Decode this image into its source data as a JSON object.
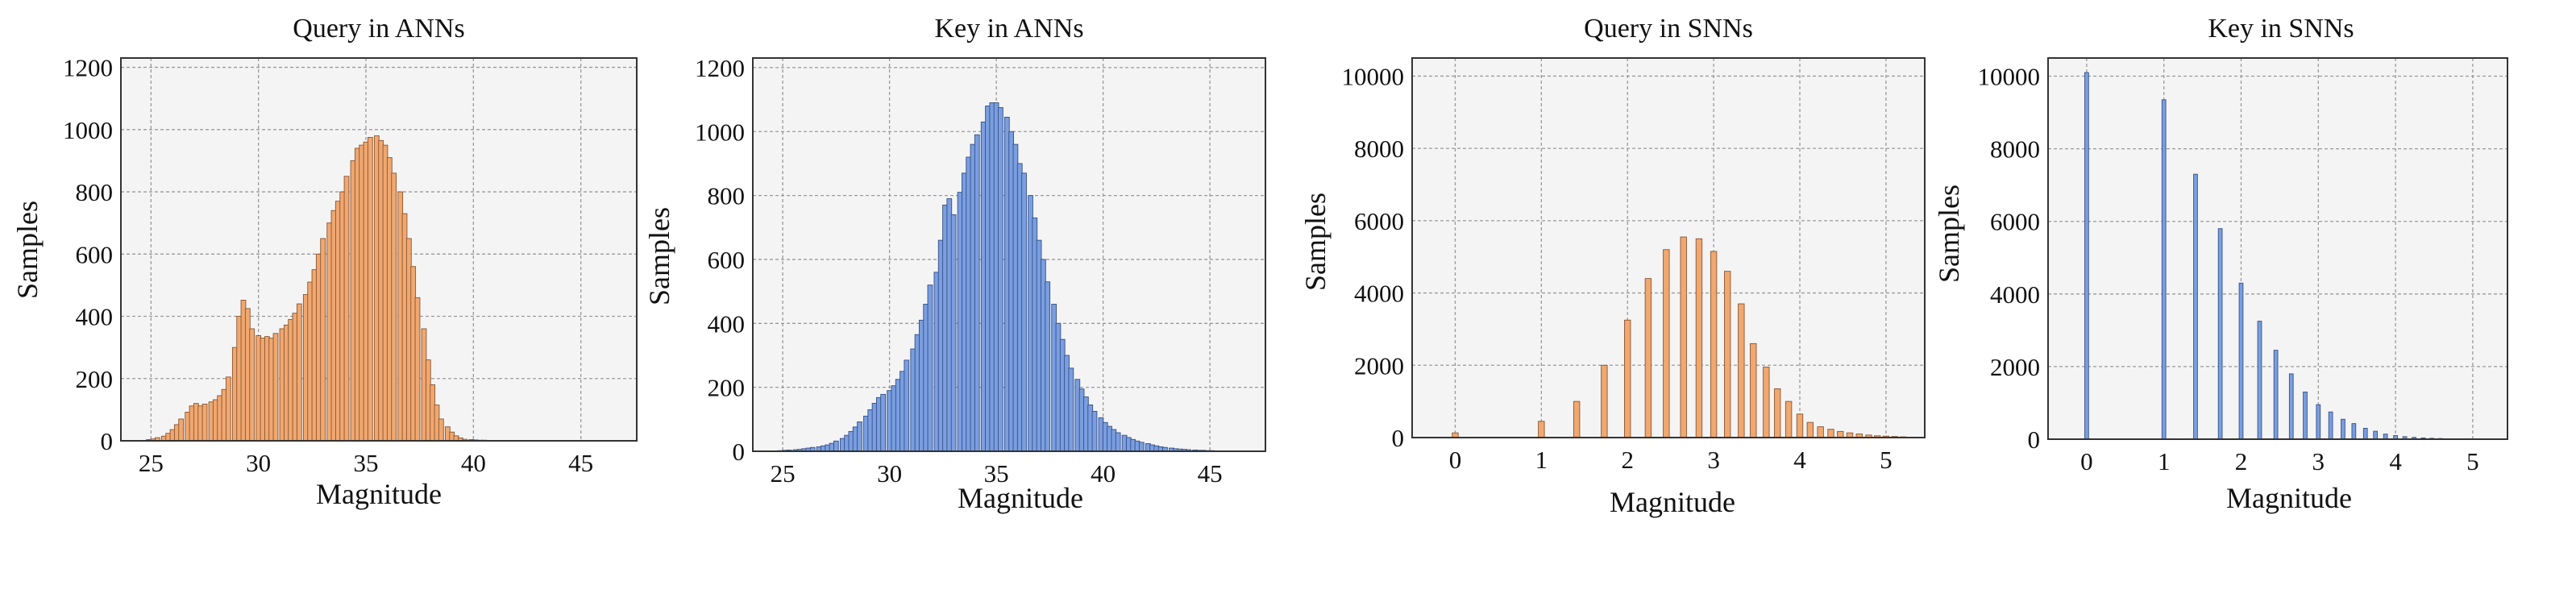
{
  "chart_data": [
    {
      "type": "bar",
      "title": "Query in ANNs",
      "xlabel": "Magnitude",
      "ylabel": "Samples",
      "xlim": [
        23.6,
        47.6
      ],
      "ylim": [
        0,
        1230
      ],
      "xticks": [
        25,
        30,
        35,
        40,
        45
      ],
      "yticks": [
        0,
        200,
        400,
        600,
        800,
        1000,
        1200
      ],
      "grid": true,
      "color": "#F0A870",
      "edge_color": "#8A5530",
      "bin_width": 0.22,
      "x": [
        24.9,
        25.1,
        25.3,
        25.6,
        25.8,
        26.0,
        26.2,
        26.4,
        26.7,
        26.9,
        27.1,
        27.3,
        27.5,
        27.8,
        28.0,
        28.2,
        28.4,
        28.6,
        28.9,
        29.1,
        29.3,
        29.5,
        29.7,
        30.0,
        30.2,
        30.4,
        30.6,
        30.8,
        31.1,
        31.3,
        31.5,
        31.7,
        31.9,
        32.2,
        32.4,
        32.6,
        32.8,
        33.0,
        33.3,
        33.5,
        33.7,
        33.9,
        34.1,
        34.4,
        34.6,
        34.8,
        35.0,
        35.2,
        35.5,
        35.7,
        35.9,
        36.1,
        36.3,
        36.6,
        36.8,
        37.0,
        37.2,
        37.4,
        37.7,
        37.9,
        38.1,
        38.3,
        38.5,
        38.8,
        39.0,
        39.2,
        39.4,
        39.6,
        39.9,
        40.1,
        40.3,
        40.5,
        40.7,
        41.0,
        41.2,
        41.4,
        41.6,
        41.8,
        42.1,
        42.3,
        42.5,
        42.7,
        42.9,
        43.2,
        43.4,
        43.6,
        43.8,
        44.0,
        44.3,
        44.5,
        44.7,
        44.9,
        45.1,
        45.4,
        45.6,
        45.8,
        46.0,
        46.2,
        46.5,
        46.7
      ],
      "values": [
        4,
        6,
        10,
        15,
        24,
        36,
        52,
        70,
        92,
        112,
        120,
        112,
        118,
        125,
        132,
        145,
        165,
        205,
        300,
        400,
        452,
        425,
        360,
        338,
        330,
        335,
        330,
        345,
        360,
        372,
        390,
        410,
        440,
        470,
        510,
        550,
        600,
        650,
        700,
        740,
        770,
        800,
        850,
        900,
        940,
        950,
        960,
        975,
        980,
        965,
        950,
        910,
        860,
        800,
        730,
        650,
        560,
        460,
        360,
        260,
        180,
        115,
        70,
        45,
        28,
        16,
        9,
        5,
        4,
        3,
        2,
        2,
        1,
        1,
        1,
        1,
        1,
        0,
        0,
        1,
        0,
        0,
        1,
        0,
        0,
        0,
        0,
        0,
        1,
        0,
        0,
        0,
        0,
        0,
        0,
        0,
        0,
        0,
        0,
        0
      ]
    },
    {
      "type": "bar",
      "title": "Key in ANNs",
      "xlabel": "Magnitude",
      "ylabel": "Samples",
      "xlim": [
        23.6,
        47.6
      ],
      "ylim": [
        0,
        1230
      ],
      "xticks": [
        25,
        30,
        35,
        40,
        45
      ],
      "yticks": [
        0,
        200,
        400,
        600,
        800,
        1000,
        1200
      ],
      "grid": true,
      "color": "#7A9EDF",
      "edge_color": "#34508A",
      "bin_width": 0.22,
      "x": [
        24.9,
        25.1,
        25.3,
        25.6,
        25.8,
        26.0,
        26.2,
        26.4,
        26.7,
        26.9,
        27.1,
        27.3,
        27.5,
        27.8,
        28.0,
        28.2,
        28.4,
        28.6,
        28.9,
        29.1,
        29.3,
        29.5,
        29.7,
        30.0,
        30.2,
        30.4,
        30.6,
        30.8,
        31.1,
        31.3,
        31.5,
        31.7,
        31.9,
        32.2,
        32.4,
        32.6,
        32.8,
        33.0,
        33.3,
        33.5,
        33.7,
        33.9,
        34.1,
        34.4,
        34.6,
        34.8,
        35.0,
        35.2,
        35.5,
        35.7,
        35.9,
        36.1,
        36.3,
        36.6,
        36.8,
        37.0,
        37.2,
        37.4,
        37.7,
        37.9,
        38.1,
        38.3,
        38.5,
        38.8,
        39.0,
        39.2,
        39.4,
        39.6,
        39.9,
        40.1,
        40.3,
        40.5,
        40.7,
        41.0,
        41.2,
        41.4,
        41.6,
        41.8,
        42.1,
        42.3,
        42.5,
        42.7,
        42.9,
        43.2,
        43.4,
        43.6,
        43.8,
        44.0,
        44.3,
        44.5,
        44.7,
        44.9,
        45.1,
        45.4,
        45.6,
        45.8,
        46.0,
        46.2,
        46.5,
        46.7
      ],
      "values": [
        2,
        3,
        4,
        5,
        6,
        8,
        10,
        12,
        14,
        17,
        20,
        25,
        32,
        40,
        50,
        62,
        76,
        92,
        110,
        130,
        150,
        168,
        178,
        190,
        205,
        225,
        250,
        285,
        320,
        365,
        410,
        460,
        520,
        560,
        660,
        770,
        790,
        740,
        810,
        870,
        920,
        960,
        990,
        1030,
        1080,
        1090,
        1090,
        1075,
        1045,
        1000,
        960,
        900,
        870,
        800,
        730,
        660,
        600,
        530,
        460,
        400,
        350,
        300,
        260,
        225,
        195,
        170,
        145,
        125,
        105,
        90,
        78,
        68,
        58,
        50,
        43,
        37,
        32,
        28,
        24,
        20,
        17,
        14,
        12,
        10,
        8,
        7,
        6,
        5,
        4,
        3,
        3,
        2,
        2,
        1,
        1,
        1,
        1,
        1,
        0,
        0
      ]
    },
    {
      "type": "bar",
      "title": "Query in SNNs",
      "xlabel": "Magnitude",
      "ylabel": "Samples",
      "xlim": [
        -0.5,
        5.45
      ],
      "ylim": [
        0,
        10500
      ],
      "xticks": [
        0,
        1,
        2,
        3,
        4,
        5
      ],
      "yticks": [
        0,
        2000,
        4000,
        6000,
        8000,
        10000
      ],
      "grid": true,
      "color": "#F0A870",
      "edge_color": "#8A5530",
      "bin_width": 0.07,
      "x": [
        0.0,
        1.0,
        1.41,
        1.73,
        2.0,
        2.24,
        2.45,
        2.65,
        2.83,
        3.0,
        3.16,
        3.32,
        3.46,
        3.61,
        3.74,
        3.87,
        4.0,
        4.12,
        4.24,
        4.36,
        4.47,
        4.58,
        4.69,
        4.8,
        4.9,
        5.0,
        5.1,
        5.2
      ],
      "values": [
        130,
        450,
        1000,
        2000,
        3250,
        4400,
        5200,
        5550,
        5500,
        5150,
        4600,
        3700,
        2600,
        1950,
        1350,
        1000,
        650,
        420,
        300,
        230,
        170,
        130,
        100,
        70,
        50,
        40,
        30,
        20
      ]
    },
    {
      "type": "bar",
      "title": "Key in SNNs",
      "xlabel": "Magnitude",
      "ylabel": "Samples",
      "xlim": [
        -0.5,
        5.45
      ],
      "ylim": [
        0,
        10500
      ],
      "xticks": [
        0,
        1,
        2,
        3,
        4,
        5
      ],
      "yticks": [
        0,
        2000,
        4000,
        6000,
        8000,
        10000
      ],
      "grid": true,
      "color": "#7A9EDF",
      "edge_color": "#34508A",
      "bin_width": 0.05,
      "x": [
        0.0,
        1.0,
        1.41,
        1.73,
        2.0,
        2.24,
        2.45,
        2.65,
        2.83,
        3.0,
        3.16,
        3.32,
        3.46,
        3.61,
        3.74,
        3.87,
        4.0,
        4.12,
        4.24,
        4.36,
        4.47,
        4.58,
        4.69,
        4.8,
        4.9,
        5.0,
        5.1,
        5.2
      ],
      "values": [
        10100,
        9350,
        7300,
        5800,
        4300,
        3250,
        2450,
        1800,
        1300,
        950,
        750,
        550,
        430,
        300,
        220,
        140,
        100,
        70,
        50,
        35,
        25,
        18,
        12,
        8,
        5,
        4,
        2,
        1
      ]
    }
  ]
}
